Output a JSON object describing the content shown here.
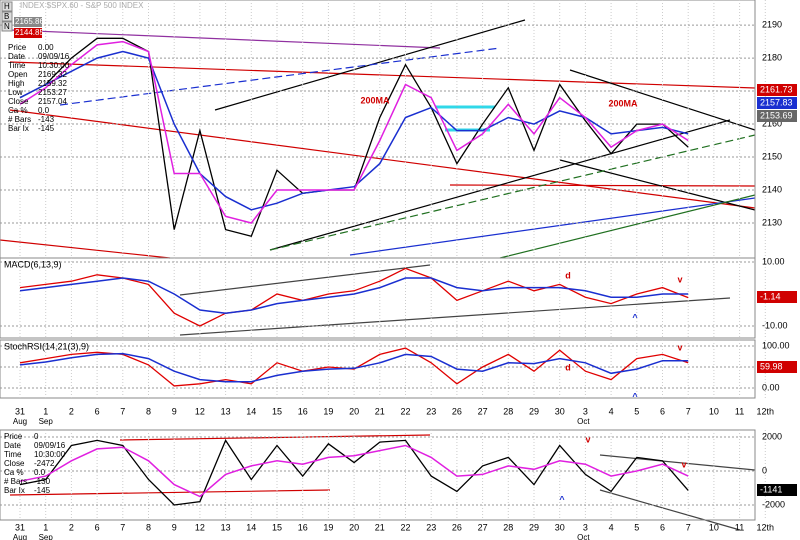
{
  "header": {
    "title": "INDEX $SPX.60 - S&P 500 INDEX",
    "buttons": [
      "H",
      "B",
      "N"
    ],
    "tags": [
      "2165.86",
      "2144.85"
    ]
  },
  "info_box": [
    [
      "Price",
      "0.00"
    ],
    [
      "Date",
      "09/09/16"
    ],
    [
      "Time",
      "10:30:00"
    ],
    [
      "Open",
      "2169.32"
    ],
    [
      "High",
      "2159.32"
    ],
    [
      "Low",
      "2153.27"
    ],
    [
      "Close",
      "2157.04"
    ],
    [
      "Ca %",
      "0.0"
    ],
    [
      "# Bars",
      "-143"
    ],
    [
      "Bar Ix",
      "-145"
    ]
  ],
  "bottom_info_box": [
    [
      "Price",
      "0"
    ],
    [
      "Date",
      "09/09/16"
    ],
    [
      "Time",
      "10:30:00"
    ],
    [
      "Close",
      "-2472"
    ],
    [
      "Ca %",
      "0.0"
    ],
    [
      "# Bars",
      "-130"
    ],
    [
      "Bar Ix",
      "-145"
    ]
  ],
  "dates": {
    "categories": [
      "31",
      "1",
      "2",
      "6",
      "7",
      "8",
      "9",
      "12",
      "13",
      "14",
      "15",
      "16",
      "19",
      "20",
      "21",
      "22",
      "23",
      "26",
      "27",
      "28",
      "29",
      "30",
      "3",
      "4",
      "5",
      "6",
      "7",
      "10",
      "11",
      "12th"
    ],
    "months": [
      "Aug",
      "Sep",
      "Oct"
    ]
  },
  "chart_data": [
    {
      "type": "line",
      "ylim": [
        2119.4,
        2197.6
      ],
      "yticks": [
        2130,
        2140,
        2150,
        2160,
        2170,
        2180,
        2190
      ],
      "grid": true,
      "value_tags": [
        "2161.73",
        "2157.83",
        "2153.69"
      ],
      "annotations": [
        "200MA",
        "200MA"
      ],
      "series": [
        {
          "color": "#000000",
          "values": [
            2168,
            2172,
            2180,
            2186,
            2186,
            2182,
            2128,
            2158,
            2128,
            2126,
            2146,
            2139,
            2140,
            2140,
            2162,
            2178,
            2165,
            2148,
            2160,
            2171,
            2152,
            2172,
            2161,
            2151,
            2160,
            2160,
            2153,
            null,
            null,
            null
          ]
        },
        {
          "color": "#1a2fd0",
          "values": [
            2168,
            2172,
            2176,
            2180,
            2182,
            2180,
            2160,
            2145,
            2138,
            2134,
            2136,
            2139,
            2140,
            2141,
            2148,
            2162,
            2165,
            2158,
            2158,
            2162,
            2160,
            2164,
            2162,
            2157,
            2158,
            2159,
            2157,
            null,
            null,
            null
          ]
        },
        {
          "color": "#e020e0",
          "values": [
            2166,
            2171,
            2178,
            2184,
            2185,
            2182,
            2145,
            2145,
            2132,
            2130,
            2140,
            2140,
            2140,
            2140,
            2155,
            2172,
            2168,
            2152,
            2157,
            2166,
            2157,
            2168,
            2162,
            2153,
            2158,
            2160,
            2155,
            null,
            null,
            null
          ]
        }
      ]
    },
    {
      "type": "line",
      "title": "MACD(6,13,9)",
      "ylim": [
        -13.75,
        11.25
      ],
      "yticks": [
        {
          "value": 10,
          "label": "10.00"
        },
        {
          "value": -10,
          "label": "-10.00"
        }
      ],
      "grid": true,
      "value_tags": [
        "-1.14"
      ],
      "annotations": [
        "d",
        "v",
        "^"
      ],
      "series": [
        {
          "color": "#e00000",
          "values": [
            2,
            3,
            4,
            6,
            5,
            3,
            -6,
            -10,
            -6,
            -5,
            0,
            -2,
            0,
            1,
            4,
            8,
            5,
            -2,
            1,
            4,
            1,
            3,
            -1,
            -3,
            0,
            2,
            -1.14,
            null,
            null,
            null
          ]
        },
        {
          "color": "#1a2fd0",
          "values": [
            1,
            2,
            3,
            4,
            5,
            4,
            0,
            -5,
            -6,
            -5,
            -3,
            -2,
            -1,
            0,
            2,
            5,
            5,
            2,
            1,
            2,
            2,
            2,
            1,
            -1,
            -1,
            0,
            0,
            null,
            null,
            null
          ]
        }
      ]
    },
    {
      "type": "line",
      "title": "StochRSI(14,21(3),9)",
      "ylim": [
        -23.8,
        114.3
      ],
      "yticks": [
        {
          "value": 100,
          "label": "100.00"
        },
        {
          "value": 50,
          "label": "50.00"
        },
        {
          "value": 0,
          "label": "0.00"
        }
      ],
      "grid": true,
      "value_tags": [
        "59.98"
      ],
      "annotations": [
        "d",
        "v",
        "^"
      ],
      "series": [
        {
          "color": "#e00000",
          "values": [
            60,
            70,
            80,
            85,
            80,
            55,
            5,
            10,
            20,
            10,
            60,
            40,
            50,
            45,
            80,
            95,
            60,
            10,
            50,
            80,
            40,
            90,
            40,
            20,
            70,
            80,
            59.98,
            null,
            null,
            null
          ]
        },
        {
          "color": "#1a2fd0",
          "values": [
            55,
            62,
            72,
            80,
            82,
            70,
            40,
            20,
            15,
            15,
            30,
            40,
            45,
            47,
            60,
            80,
            75,
            45,
            40,
            60,
            58,
            70,
            60,
            35,
            45,
            65,
            65,
            null,
            null,
            null
          ]
        }
      ]
    },
    {
      "type": "line",
      "ylim": [
        -2882,
        2412
      ],
      "yticks": [
        2000,
        0,
        -2000
      ],
      "grid": true,
      "value_tags": [
        "-1141"
      ],
      "annotations": [
        "^",
        "v",
        "v"
      ],
      "series": [
        {
          "color": "#000000",
          "values": [
            -800,
            -500,
            1500,
            1800,
            1500,
            -500,
            -2000,
            -1800,
            1800,
            -500,
            1500,
            -300,
            1600,
            500,
            1700,
            1800,
            -300,
            -1200,
            300,
            800,
            -800,
            1500,
            -200,
            -1200,
            800,
            600,
            -1141,
            null,
            null,
            null
          ]
        },
        {
          "color": "#e020e0",
          "values": [
            -600,
            -300,
            600,
            1300,
            1400,
            600,
            -800,
            -1500,
            -200,
            300,
            600,
            400,
            800,
            900,
            1200,
            1500,
            800,
            -300,
            -200,
            300,
            100,
            600,
            400,
            -300,
            0,
            400,
            -300,
            null,
            null,
            null
          ]
        }
      ]
    }
  ]
}
